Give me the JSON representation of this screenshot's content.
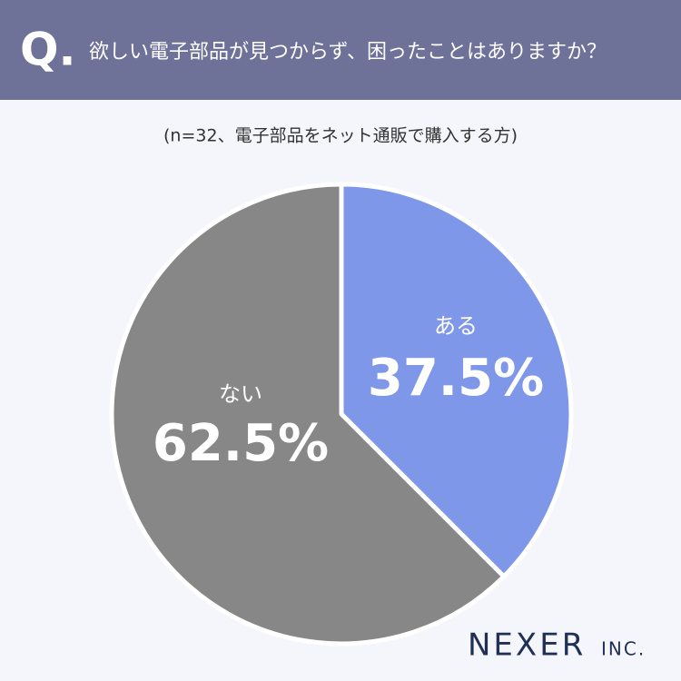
{
  "chart_data": {
    "type": "pie",
    "question_mark": "Q.",
    "title": "欲しい電子部品が見つからず、困ったことはありますか？",
    "subtitle": "(n=32、電子部品をネット通販で購入する方)",
    "categories": [
      "ある",
      "ない"
    ],
    "values": [
      37.5,
      62.5
    ],
    "value_labels": [
      "37.5%",
      "62.5%"
    ],
    "colors": [
      "#7f97e8",
      "#878787"
    ],
    "brand": {
      "name": "NEXER",
      "suffix": "INC."
    }
  }
}
